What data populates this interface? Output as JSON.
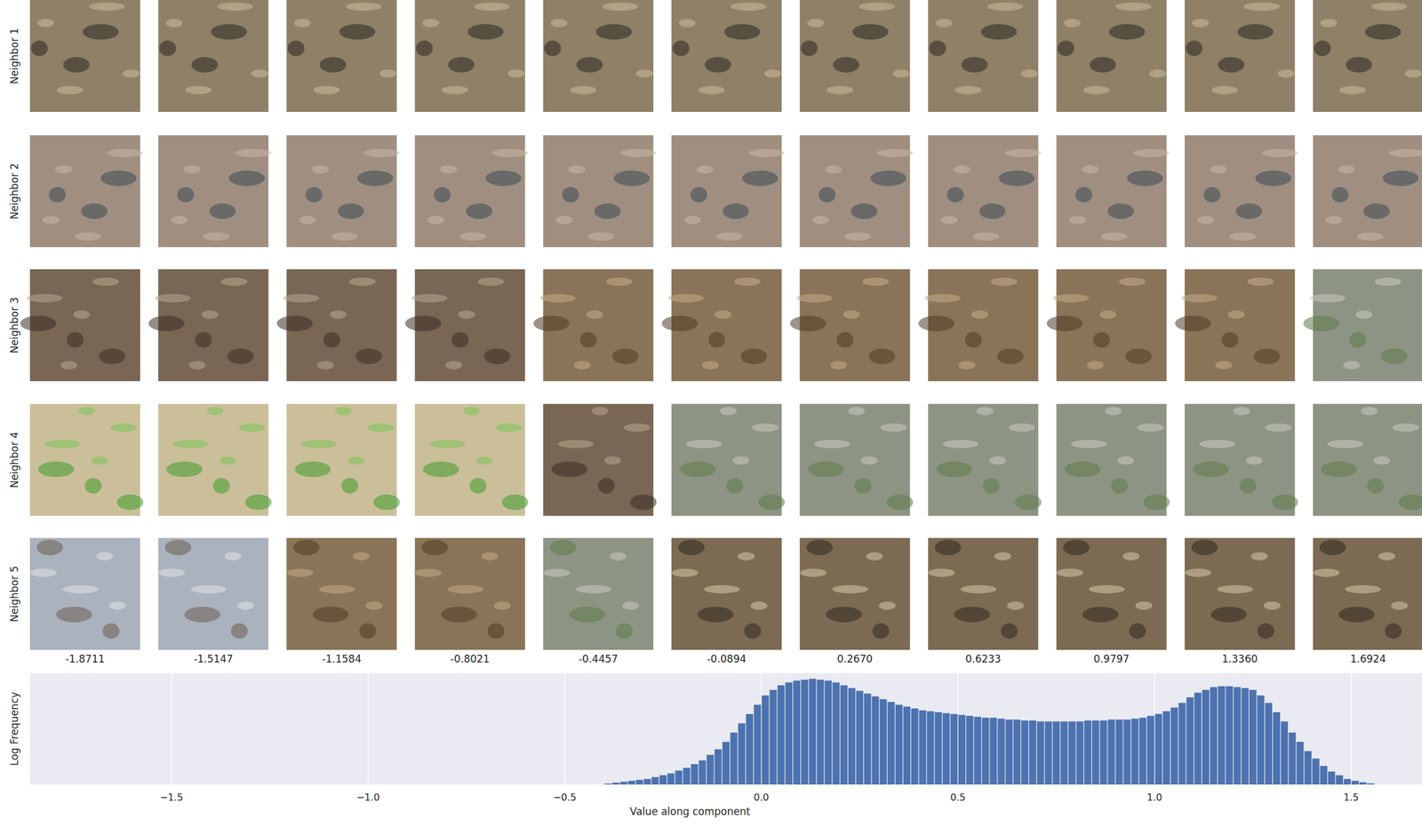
{
  "chart_data": {
    "type": "histogram",
    "row_labels": [
      "Neighbor 1",
      "Neighbor 2",
      "Neighbor 3",
      "Neighbor 4",
      "Neighbor 5"
    ],
    "column_labels": [
      "-1.8711",
      "-1.5147",
      "-1.1584",
      "-0.8021",
      "-0.4457",
      "-0.0894",
      "0.2670",
      "0.6233",
      "0.9797",
      "1.3360",
      "1.6924"
    ],
    "x_label": "Value along component",
    "y_label": "Log Frequency",
    "color": "#4c72b0",
    "grid": true,
    "tick_labels": "x",
    "xlim": [
      -1.86,
      1.68
    ],
    "ylim": [
      0,
      6
    ],
    "xticks": [
      {
        "value": -1.5,
        "label": "−1.5"
      },
      {
        "value": -1.0,
        "label": "−1.0"
      },
      {
        "value": -0.5,
        "label": "−0.5"
      },
      {
        "value": 0,
        "label": "0.0"
      },
      {
        "value": 0.5,
        "label": "0.5"
      },
      {
        "value": 1.0,
        "label": "1.0"
      },
      {
        "value": 1.5,
        "label": "1.5"
      }
    ],
    "bins": [
      -0.4,
      -0.38,
      -0.36,
      -0.34,
      -0.32,
      -0.3,
      -0.28,
      -0.26,
      -0.24,
      -0.22,
      -0.2,
      -0.18,
      -0.16,
      -0.14,
      -0.12,
      -0.1,
      -0.08,
      -0.06,
      -0.04,
      -0.02,
      0,
      0.02,
      0.04,
      0.06,
      0.08,
      0.1,
      0.12,
      0.14,
      0.16,
      0.18,
      0.2,
      0.22,
      0.24,
      0.26,
      0.28,
      0.3,
      0.32,
      0.34,
      0.36,
      0.38,
      0.4,
      0.42,
      0.44,
      0.46,
      0.48,
      0.5,
      0.52,
      0.54,
      0.56,
      0.58,
      0.6,
      0.62,
      0.64,
      0.66,
      0.68,
      0.7,
      0.72,
      0.74,
      0.76,
      0.78,
      0.8,
      0.82,
      0.84,
      0.86,
      0.88,
      0.9,
      0.92,
      0.94,
      0.96,
      0.98,
      1.0,
      1.02,
      1.04,
      1.06,
      1.08,
      1.1,
      1.12,
      1.14,
      1.16,
      1.18,
      1.2,
      1.22,
      1.24,
      1.26,
      1.28,
      1.3,
      1.32,
      1.34,
      1.36,
      1.38,
      1.4,
      1.42,
      1.44,
      1.46,
      1.48,
      1.5,
      1.52,
      1.54,
      1.56
    ],
    "values": [
      0.05,
      0.1,
      0.15,
      0.2,
      0.25,
      0.3,
      0.4,
      0.5,
      0.6,
      0.75,
      0.9,
      1.1,
      1.3,
      1.6,
      1.9,
      2.3,
      2.8,
      3.3,
      3.8,
      4.3,
      4.8,
      5.1,
      5.35,
      5.5,
      5.6,
      5.65,
      5.7,
      5.65,
      5.6,
      5.5,
      5.35,
      5.2,
      5.05,
      4.9,
      4.75,
      4.6,
      4.45,
      4.3,
      4.2,
      4.1,
      4.0,
      3.95,
      3.9,
      3.85,
      3.8,
      3.75,
      3.7,
      3.65,
      3.6,
      3.6,
      3.55,
      3.5,
      3.5,
      3.45,
      3.45,
      3.4,
      3.4,
      3.4,
      3.4,
      3.4,
      3.4,
      3.45,
      3.45,
      3.45,
      3.5,
      3.5,
      3.5,
      3.55,
      3.6,
      3.7,
      3.8,
      3.95,
      4.15,
      4.4,
      4.7,
      4.95,
      5.1,
      5.25,
      5.3,
      5.3,
      5.25,
      5.2,
      5.1,
      4.8,
      4.4,
      3.9,
      3.4,
      2.8,
      2.3,
      1.8,
      1.4,
      1.0,
      0.7,
      0.5,
      0.3,
      0.2,
      0.12,
      0.06
    ]
  }
}
